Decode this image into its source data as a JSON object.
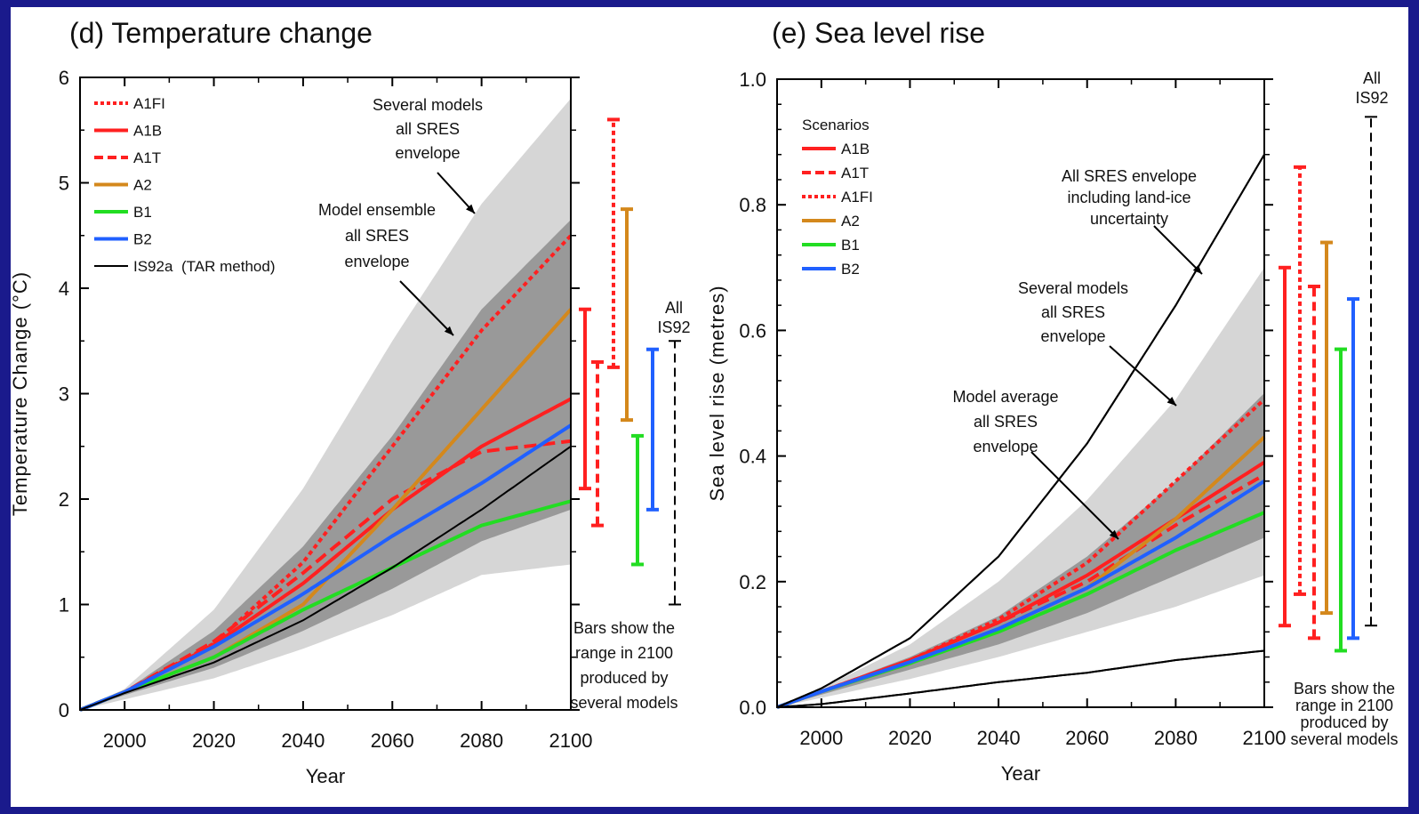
{
  "colors": {
    "background": "#1a1a8c",
    "A1FI": "#ff2020",
    "A1B": "#ff2020",
    "A1T": "#ff2020",
    "A2": "#d4881c",
    "B1": "#22dd22",
    "B2": "#2060ff",
    "IS92a": "#000000",
    "light_envelope": "#d6d6d6",
    "dark_envelope": "#999999"
  },
  "chart_data": [
    {
      "type": "line",
      "title": "(d) Temperature change",
      "xlabel": "Year",
      "ylabel": "Temperature Change (°C)",
      "xlim": [
        1990,
        2100
      ],
      "ylim": [
        0,
        6
      ],
      "xticks": [
        "2000",
        "2020",
        "2040",
        "2060",
        "2080",
        "2100"
      ],
      "yticks": [
        "0",
        "1",
        "2",
        "3",
        "4",
        "5",
        "6"
      ],
      "legend": [
        {
          "name": "A1FI",
          "style": "dotted"
        },
        {
          "name": "A1B",
          "style": "solid"
        },
        {
          "name": "A1T",
          "style": "dashed"
        },
        {
          "name": "A2",
          "style": "solid"
        },
        {
          "name": "B1",
          "style": "solid"
        },
        {
          "name": "B2",
          "style": "solid"
        },
        {
          "name": "IS92a",
          "suffix": "(TAR method)",
          "style": "solid"
        }
      ],
      "series": [
        {
          "name": "A1FI",
          "x": [
            1990,
            2000,
            2020,
            2040,
            2060,
            2080,
            2100
          ],
          "y": [
            0,
            0.17,
            0.63,
            1.4,
            2.5,
            3.6,
            4.5
          ]
        },
        {
          "name": "A1B",
          "x": [
            1990,
            2000,
            2020,
            2040,
            2060,
            2080,
            2100
          ],
          "y": [
            0,
            0.17,
            0.62,
            1.2,
            1.9,
            2.5,
            2.95
          ]
        },
        {
          "name": "A1T",
          "x": [
            1990,
            2000,
            2020,
            2040,
            2060,
            2080,
            2100
          ],
          "y": [
            0,
            0.17,
            0.65,
            1.3,
            2.0,
            2.45,
            2.55
          ]
        },
        {
          "name": "A2",
          "x": [
            1990,
            2000,
            2020,
            2040,
            2060,
            2080,
            2100
          ],
          "y": [
            0,
            0.17,
            0.5,
            1.0,
            1.9,
            2.85,
            3.8
          ]
        },
        {
          "name": "B1",
          "x": [
            1990,
            2000,
            2020,
            2040,
            2060,
            2080,
            2100
          ],
          "y": [
            0,
            0.17,
            0.5,
            0.95,
            1.35,
            1.75,
            1.98
          ]
        },
        {
          "name": "B2",
          "x": [
            1990,
            2000,
            2020,
            2040,
            2060,
            2080,
            2100
          ],
          "y": [
            0,
            0.17,
            0.6,
            1.1,
            1.65,
            2.15,
            2.7
          ]
        },
        {
          "name": "IS92a",
          "x": [
            1990,
            2000,
            2020,
            2040,
            2060,
            2080,
            2100
          ],
          "y": [
            0,
            0.16,
            0.45,
            0.85,
            1.35,
            1.9,
            2.5
          ]
        }
      ],
      "envelopes": [
        {
          "name": "Several models all SRES envelope",
          "x": [
            1990,
            2000,
            2020,
            2040,
            2060,
            2080,
            2100
          ],
          "lower": [
            0,
            0.1,
            0.3,
            0.58,
            0.9,
            1.28,
            1.38
          ],
          "upper": [
            0,
            0.2,
            0.95,
            2.1,
            3.5,
            4.8,
            5.8
          ]
        },
        {
          "name": "Model ensemble all SRES envelope",
          "x": [
            1990,
            2000,
            2020,
            2040,
            2060,
            2080,
            2100
          ],
          "lower": [
            0,
            0.14,
            0.4,
            0.75,
            1.15,
            1.6,
            1.9
          ],
          "upper": [
            0,
            0.18,
            0.75,
            1.55,
            2.6,
            3.8,
            4.65
          ]
        }
      ],
      "range_bars_2100": [
        {
          "name": "A1B",
          "low": 2.1,
          "high": 3.8,
          "style": "solid"
        },
        {
          "name": "A1T",
          "low": 1.75,
          "high": 3.3,
          "style": "dashed"
        },
        {
          "name": "A1FI",
          "low": 3.25,
          "high": 5.6,
          "style": "dotted"
        },
        {
          "name": "A2",
          "low": 2.75,
          "high": 4.75,
          "style": "solid"
        },
        {
          "name": "B1",
          "low": 1.38,
          "high": 2.6,
          "style": "solid"
        },
        {
          "name": "B2",
          "low": 1.9,
          "high": 3.42,
          "style": "solid"
        },
        {
          "name": "IS92",
          "low": 1.0,
          "high": 3.5,
          "style": "dashed"
        }
      ],
      "annotations": {
        "several_models": [
          "Several models",
          "all SRES",
          "envelope"
        ],
        "model_ensemble": [
          "Model ensemble",
          "all SRES",
          "envelope"
        ],
        "all_is92": [
          "All",
          "IS92"
        ],
        "bars_note": [
          "Bars show the",
          "range in 2100",
          "produced by",
          "several models"
        ]
      }
    },
    {
      "type": "line",
      "title": "(e) Sea level rise",
      "xlabel": "Year",
      "ylabel": "Sea level rise (metres)",
      "xlim": [
        1990,
        2100
      ],
      "ylim": [
        0,
        1.0
      ],
      "xticks": [
        "2000",
        "2020",
        "2040",
        "2060",
        "2080",
        "2100"
      ],
      "yticks": [
        "0.0",
        "0.2",
        "0.4",
        "0.6",
        "0.8",
        "1.0"
      ],
      "legend_title": "Scenarios",
      "legend": [
        {
          "name": "A1B",
          "style": "solid"
        },
        {
          "name": "A1T",
          "style": "dashed"
        },
        {
          "name": "A1FI",
          "style": "dotted"
        },
        {
          "name": "A2",
          "style": "solid"
        },
        {
          "name": "B1",
          "style": "solid"
        },
        {
          "name": "B2",
          "style": "solid"
        }
      ],
      "series": [
        {
          "name": "A1FI",
          "x": [
            1990,
            2000,
            2020,
            2040,
            2060,
            2080,
            2100
          ],
          "y": [
            0,
            0.025,
            0.075,
            0.14,
            0.23,
            0.36,
            0.49
          ]
        },
        {
          "name": "A1B",
          "x": [
            1990,
            2000,
            2020,
            2040,
            2060,
            2080,
            2100
          ],
          "y": [
            0,
            0.025,
            0.075,
            0.135,
            0.21,
            0.3,
            0.39
          ]
        },
        {
          "name": "A1T",
          "x": [
            1990,
            2000,
            2020,
            2040,
            2060,
            2080,
            2100
          ],
          "y": [
            0,
            0.025,
            0.075,
            0.135,
            0.2,
            0.29,
            0.37
          ]
        },
        {
          "name": "A2",
          "x": [
            1990,
            2000,
            2020,
            2040,
            2060,
            2080,
            2100
          ],
          "y": [
            0,
            0.025,
            0.07,
            0.125,
            0.19,
            0.3,
            0.43
          ]
        },
        {
          "name": "B1",
          "x": [
            1990,
            2000,
            2020,
            2040,
            2060,
            2080,
            2100
          ],
          "y": [
            0,
            0.025,
            0.07,
            0.12,
            0.18,
            0.25,
            0.31
          ]
        },
        {
          "name": "B2",
          "x": [
            1990,
            2000,
            2020,
            2040,
            2060,
            2080,
            2100
          ],
          "y": [
            0,
            0.025,
            0.072,
            0.125,
            0.19,
            0.27,
            0.36
          ]
        }
      ],
      "envelopes": [
        {
          "name": "All SRES envelope including land-ice uncertainty",
          "x": [
            1990,
            2000,
            2020,
            2040,
            2060,
            2080,
            2100
          ],
          "lower": [
            0,
            0.005,
            0.022,
            0.04,
            0.055,
            0.075,
            0.09
          ],
          "upper": [
            0,
            0.03,
            0.11,
            0.24,
            0.42,
            0.64,
            0.88
          ]
        },
        {
          "name": "Several models all SRES envelope",
          "x": [
            1990,
            2000,
            2020,
            2040,
            2060,
            2080,
            2100
          ],
          "lower": [
            0,
            0.015,
            0.045,
            0.08,
            0.12,
            0.16,
            0.21
          ],
          "upper": [
            0,
            0.03,
            0.1,
            0.2,
            0.33,
            0.49,
            0.7
          ]
        },
        {
          "name": "Model average all SRES envelope",
          "x": [
            1990,
            2000,
            2020,
            2040,
            2060,
            2080,
            2100
          ],
          "lower": [
            0,
            0.02,
            0.06,
            0.1,
            0.15,
            0.21,
            0.27
          ],
          "upper": [
            0,
            0.027,
            0.08,
            0.145,
            0.24,
            0.36,
            0.5
          ]
        }
      ],
      "range_bars_2100": [
        {
          "name": "A1B",
          "low": 0.13,
          "high": 0.7,
          "style": "solid"
        },
        {
          "name": "A1FI",
          "low": 0.18,
          "high": 0.86,
          "style": "dotted"
        },
        {
          "name": "A1T",
          "low": 0.11,
          "high": 0.67,
          "style": "dashed"
        },
        {
          "name": "A2",
          "low": 0.15,
          "high": 0.74,
          "style": "solid"
        },
        {
          "name": "B1",
          "low": 0.09,
          "high": 0.57,
          "style": "solid"
        },
        {
          "name": "B2",
          "low": 0.11,
          "high": 0.65,
          "style": "solid"
        },
        {
          "name": "IS92",
          "low": 0.13,
          "high": 0.94,
          "style": "dashed"
        }
      ],
      "annotations": {
        "all_sres_landice": [
          "All SRES envelope",
          "including land-ice",
          "uncertainty"
        ],
        "several_models": [
          "Several models",
          "all SRES",
          "envelope"
        ],
        "model_average": [
          "Model average",
          "all SRES",
          "envelope"
        ],
        "all_is92": [
          "All",
          "IS92"
        ],
        "bars_note": [
          "Bars show the",
          "range in 2100",
          "produced by",
          "several models"
        ]
      }
    }
  ]
}
